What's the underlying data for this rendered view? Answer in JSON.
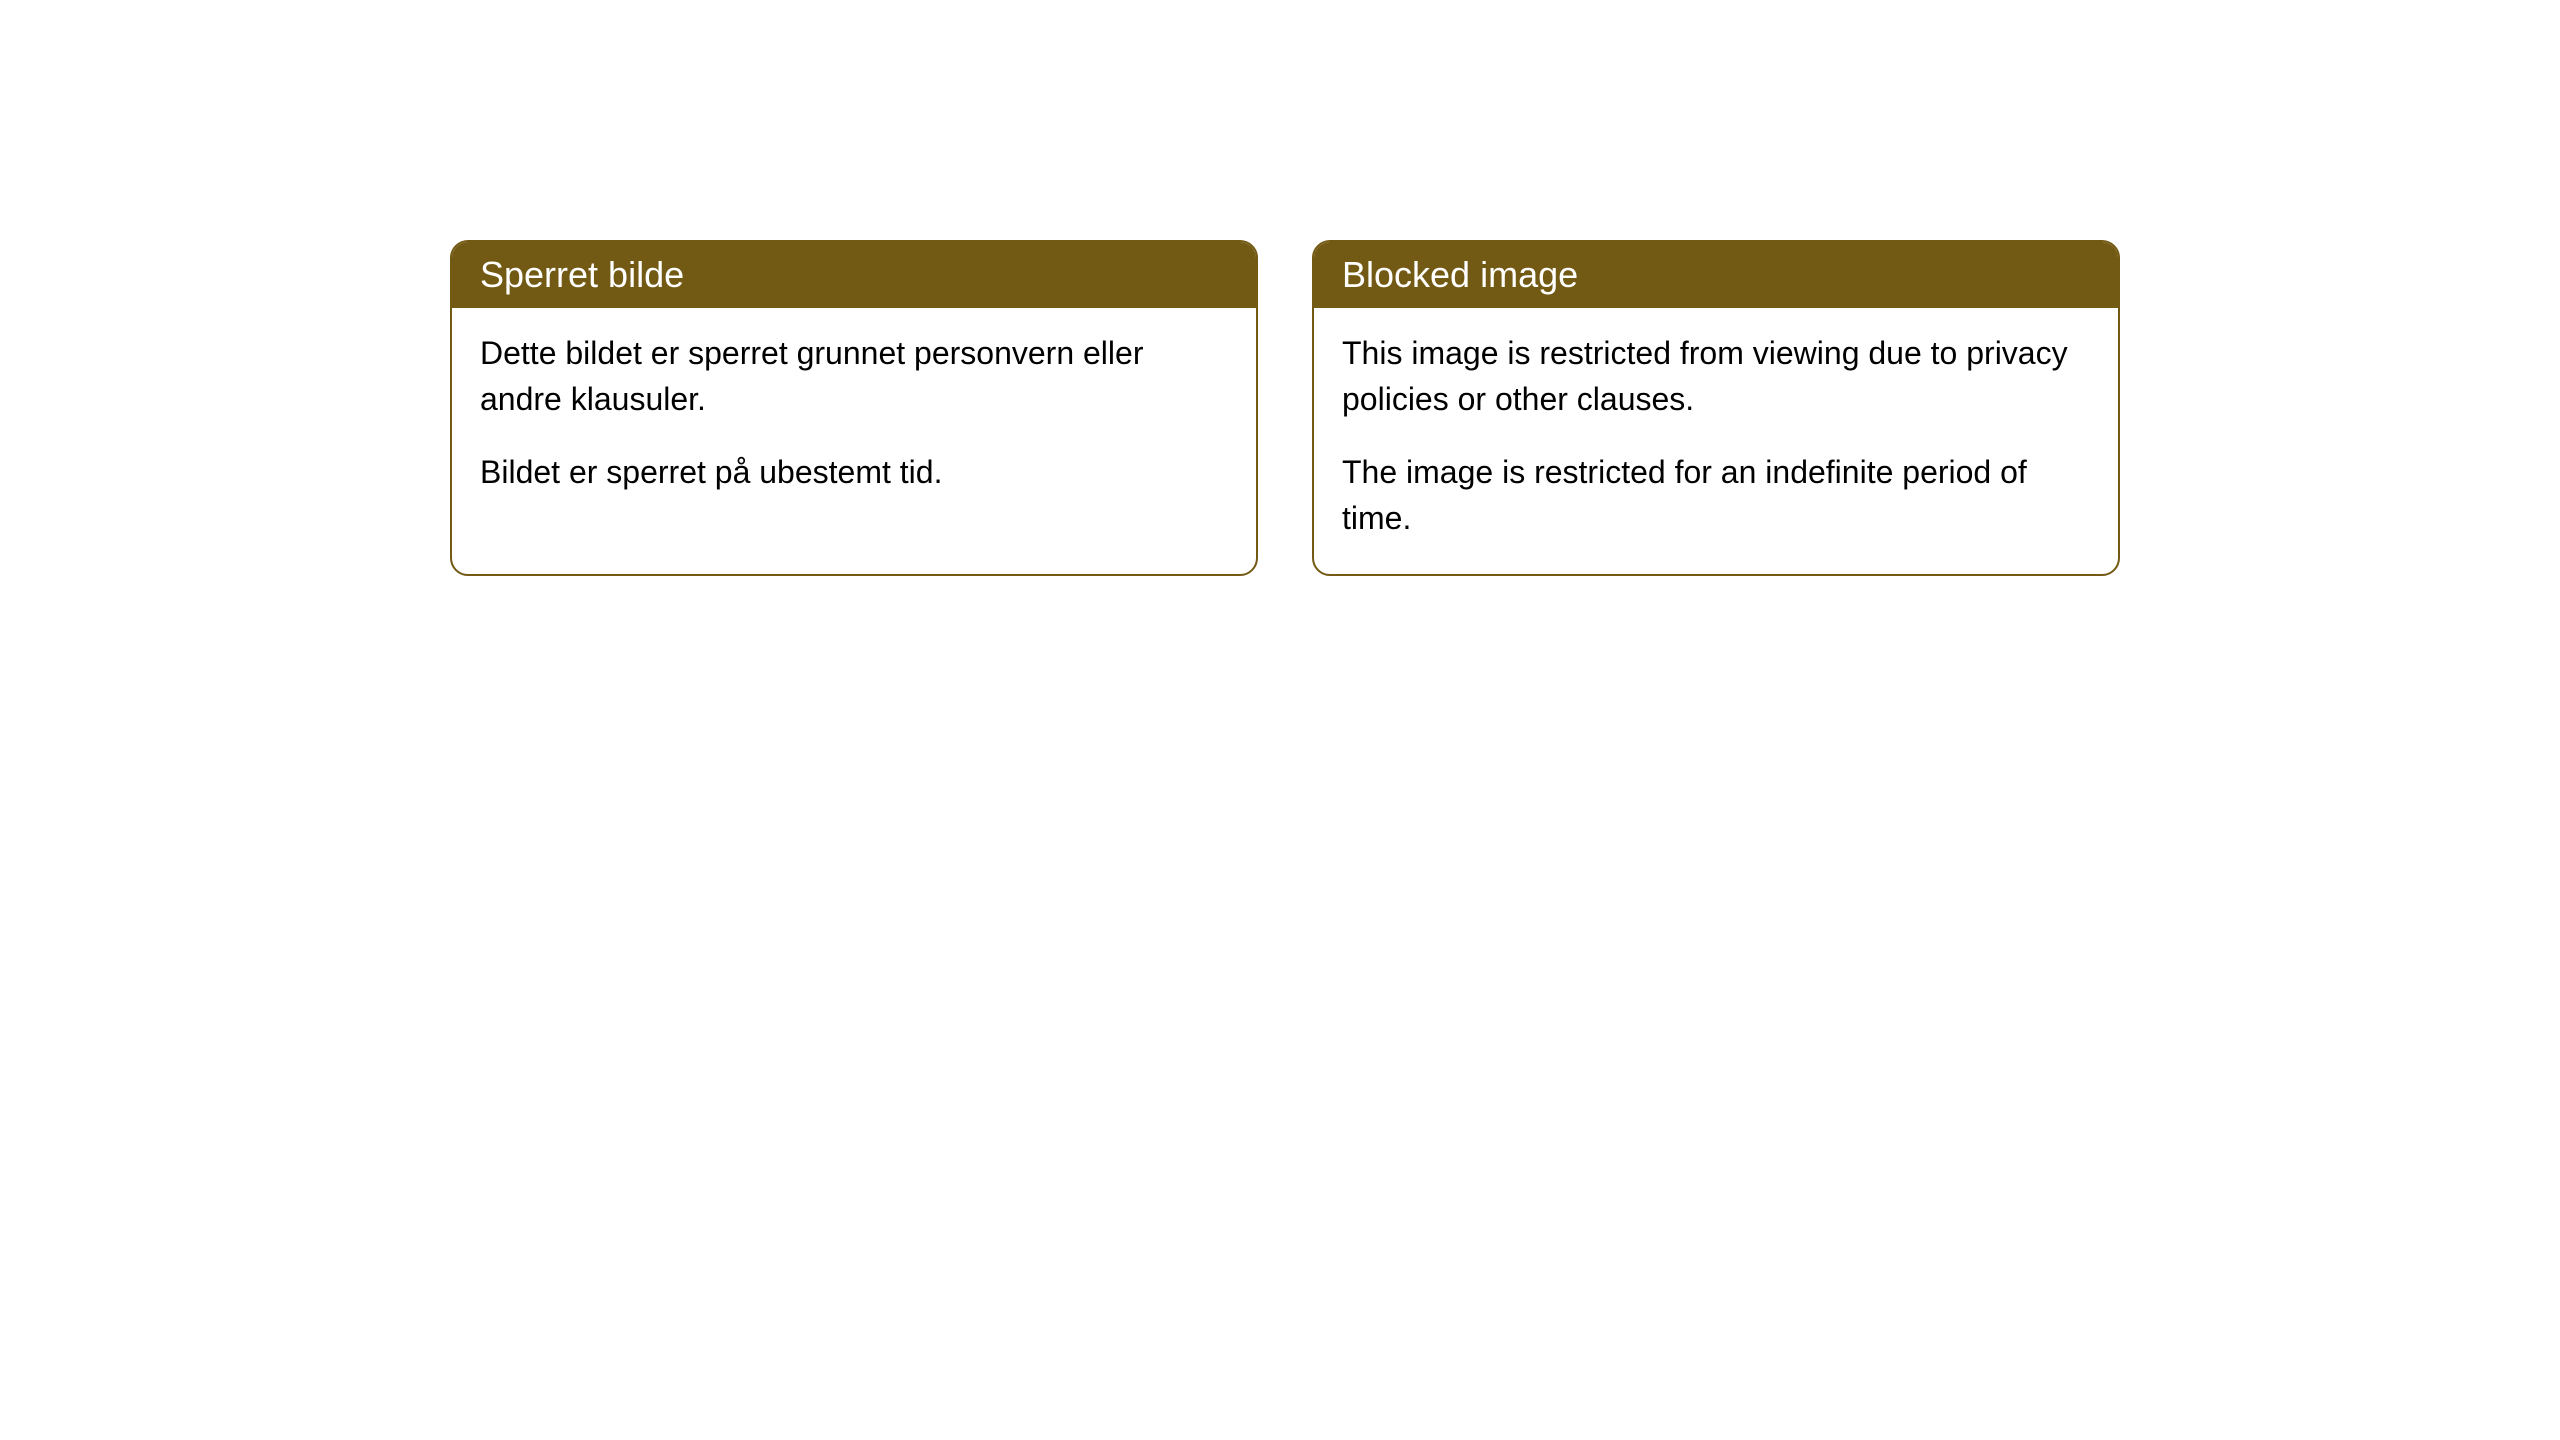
{
  "cards": [
    {
      "title": "Sperret bilde",
      "paragraph1": "Dette bildet er sperret grunnet personvern eller andre klausuler.",
      "paragraph2": "Bildet er sperret på ubestemt tid."
    },
    {
      "title": "Blocked image",
      "paragraph1": "This image is restricted from viewing due to privacy policies or other clauses.",
      "paragraph2": "The image is restricted for an indefinite period of time."
    }
  ],
  "style": {
    "header_background": "#735a14",
    "header_text_color": "#ffffff",
    "border_color": "#735a14",
    "card_background": "#ffffff",
    "body_text_color": "#000000",
    "border_radius": 18,
    "header_fontsize": 36,
    "body_fontsize": 32
  }
}
